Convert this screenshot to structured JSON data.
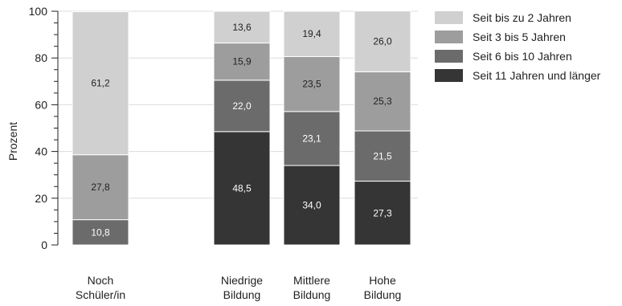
{
  "chart_data": {
    "type": "bar",
    "stacked": true,
    "categories": [
      [
        "Noch",
        "Schüler/in"
      ],
      [
        "Niedrige",
        "Bildung"
      ],
      [
        "Mittlere",
        "Bildung"
      ],
      [
        "Hohe",
        "Bildung"
      ]
    ],
    "ylabel": "Prozent",
    "ylim": [
      0,
      100
    ],
    "yticks": [
      0,
      20,
      40,
      60,
      80,
      100
    ],
    "grid": true,
    "legend_position": "top-right",
    "series": [
      {
        "name": "Seit 11 Jahren und länger",
        "color": "#353535",
        "label_color": "#ffffff",
        "values": [
          null,
          48.5,
          34.0,
          27.3
        ],
        "labels": [
          "",
          "48,5",
          "34,0",
          "27,3"
        ]
      },
      {
        "name": "Seit 6 bis 10 Jahren",
        "color": "#6b6b6b",
        "label_color": "#ffffff",
        "values": [
          10.8,
          22.0,
          23.1,
          21.5
        ],
        "labels": [
          "10,8",
          "22,0",
          "23,1",
          "21,5"
        ]
      },
      {
        "name": "Seit 3 bis 5 Jahren",
        "color": "#9d9d9d",
        "label_color": "#222222",
        "values": [
          27.8,
          15.9,
          23.5,
          25.3
        ],
        "labels": [
          "27,8",
          "15,9",
          "23,5",
          "25,3"
        ]
      },
      {
        "name": "Seit bis zu 2 Jahren",
        "color": "#d0d0d0",
        "label_color": "#222222",
        "values": [
          61.2,
          13.6,
          19.4,
          26.0
        ],
        "labels": [
          "61,2",
          "13,6",
          "19,4",
          "26,0"
        ]
      }
    ]
  }
}
